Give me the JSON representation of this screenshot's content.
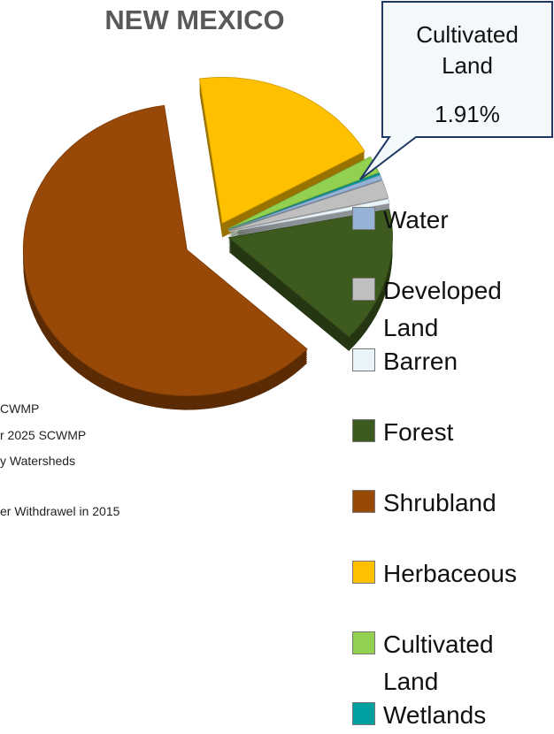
{
  "chart_data": {
    "type": "pie",
    "title": "NEW MEXICO",
    "categories": [
      "Water",
      "Developed Land",
      "Barren",
      "Forest",
      "Shrubland",
      "Herbaceous",
      "Cultivated Land",
      "Wetlands"
    ],
    "values": [
      0.5,
      2,
      0.5,
      15,
      60.9,
      19,
      1.91,
      0.2
    ],
    "value_labels": [
      null,
      null,
      null,
      null,
      null,
      null,
      "1.91%",
      null
    ],
    "colors": [
      "#95b3d7",
      "#bfbfbf",
      "#eaf4fb",
      "#3d5a1f",
      "#984807",
      "#ffc000",
      "#92d050",
      "#00a0a0"
    ],
    "legend": "right",
    "background_text": [
      "CWMP",
      "r 2025 SCWMP",
      "y Watersheds",
      "er Withdrawel in 2015"
    ]
  }
}
